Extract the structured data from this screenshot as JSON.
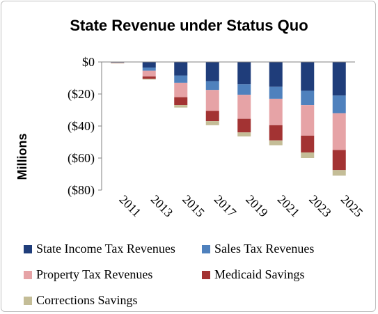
{
  "chart_data": {
    "type": "bar",
    "stacked": true,
    "title": "State Revenue under Status Quo",
    "ylabel": "Millions",
    "xlabel": "",
    "ylim": [
      -80,
      0
    ],
    "yticks": [
      0,
      -20,
      -40,
      -60,
      -80
    ],
    "ytick_labels": [
      "$0",
      "($20)",
      "($40)",
      "($60)",
      "($80)"
    ],
    "categories": [
      "2011",
      "2013",
      "2015",
      "2017",
      "2019",
      "2021",
      "2023",
      "2025"
    ],
    "grid": false,
    "legend_position": "bottom",
    "series": [
      {
        "name": "State Income Tax Revenues",
        "color": "#1f3d7a",
        "values": [
          -0.3,
          -3.5,
          -8.5,
          -12,
          -14,
          -15.5,
          -18,
          -21
        ]
      },
      {
        "name": "Sales Tax Revenues",
        "color": "#4f81bd",
        "values": [
          -0.1,
          -2,
          -4.5,
          -5.5,
          -6.5,
          -7.5,
          -9,
          -11
        ]
      },
      {
        "name": "Property Tax Revenues",
        "color": "#e6a3a6",
        "values": [
          -0.1,
          -3.5,
          -9,
          -13,
          -15,
          -16.5,
          -19,
          -23
        ]
      },
      {
        "name": "Medicaid Savings",
        "color": "#a33333",
        "values": [
          -0.1,
          -1.5,
          -5,
          -6.5,
          -8.5,
          -9.5,
          -10.5,
          -12.5
        ]
      },
      {
        "name": "Corrections Savings",
        "color": "#c4bd97",
        "values": [
          -0.1,
          -0.5,
          -1.5,
          -2.5,
          -2.5,
          -3,
          -3.5,
          -3.5
        ]
      }
    ]
  }
}
